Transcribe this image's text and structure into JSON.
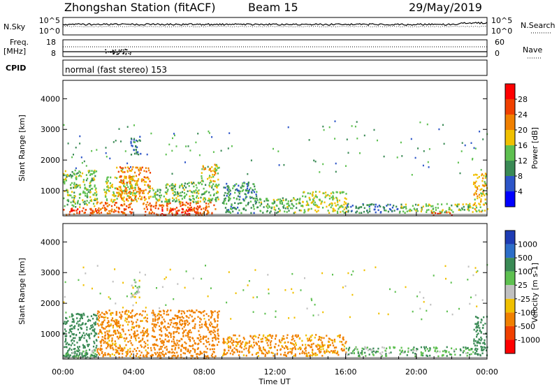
{
  "header": {
    "station": "Zhongshan Station (fitACF)",
    "beam": "Beam 15",
    "date": "29/May/2019"
  },
  "noise_panel": {
    "left_label": "N.Sky",
    "right_label": "N.Search",
    "left_ticks": [
      "10^5",
      "10^0"
    ],
    "right_ticks": [
      "10^5",
      "10^0"
    ]
  },
  "freq_panel": {
    "left_label": "Freq.",
    "left_unit": "[MHz]",
    "right_label": "Nave",
    "left_ticks": [
      "18",
      "8"
    ],
    "right_ticks": [
      "60",
      "0"
    ]
  },
  "cpid": {
    "label": "CPID",
    "text": "normal (fast stereo) 153"
  },
  "time_axis": {
    "label": "Time UT",
    "ticks": [
      "00:00",
      "04:00",
      "08:00",
      "12:00",
      "16:00",
      "20:00",
      "00:00"
    ]
  },
  "power_panel": {
    "ylabel": "Slant Range [km]",
    "yticks": [
      "1000",
      "2000",
      "3000",
      "4000"
    ],
    "colorbar_label": "Power [dB]",
    "colorbar_ticks": [
      "4",
      "8",
      "12",
      "16",
      "20",
      "24",
      "28"
    ],
    "colors": [
      "#0000ff",
      "#2d55c8",
      "#3a8a55",
      "#5ec050",
      "#f0c000",
      "#f08000",
      "#f04000",
      "#ff0000"
    ]
  },
  "velocity_panel": {
    "ylabel": "Slant Range [km]",
    "yticks": [
      "1000",
      "2000",
      "3000",
      "4000"
    ],
    "colorbar_label": "Velocity [m s-1]",
    "colorbar_ticks": [
      "1000",
      "500",
      "100",
      "25",
      "-25",
      "-100",
      "-500",
      "-1000"
    ],
    "colors": [
      "#1e3cb4",
      "#2d6ec8",
      "#3a8a55",
      "#5ec050",
      "#c0c0c0",
      "#f0c000",
      "#f08000",
      "#f04000",
      "#ff0000"
    ]
  },
  "chart_data": [
    {
      "type": "heatmap",
      "name": "power",
      "x_range_hours": [
        0,
        24
      ],
      "y_range_km": [
        180,
        4600
      ],
      "value_label": "Power [dB]",
      "value_range": [
        0,
        30
      ],
      "blobs": [
        {
          "t0": 0.0,
          "t1": 1.9,
          "r0": 230,
          "r1": 480,
          "v": 26
        },
        {
          "t0": 0.0,
          "t1": 1.9,
          "r0": 480,
          "r1": 1700,
          "v": 14
        },
        {
          "t0": 1.9,
          "t1": 4.0,
          "r0": 230,
          "r1": 650,
          "v": 24
        },
        {
          "t0": 2.3,
          "t1": 4.2,
          "r0": 650,
          "r1": 1500,
          "v": 16
        },
        {
          "t0": 3.0,
          "t1": 4.9,
          "r0": 700,
          "r1": 1800,
          "v": 22
        },
        {
          "t0": 3.8,
          "t1": 4.4,
          "r0": 2200,
          "r1": 2800,
          "v": 8
        },
        {
          "t0": 4.5,
          "t1": 8.6,
          "r0": 230,
          "r1": 650,
          "v": 24
        },
        {
          "t0": 5.4,
          "t1": 7.6,
          "r0": 230,
          "r1": 430,
          "v": 29
        },
        {
          "t0": 4.8,
          "t1": 8.8,
          "r0": 650,
          "r1": 1300,
          "v": 14
        },
        {
          "t0": 7.8,
          "t1": 8.8,
          "r0": 1300,
          "r1": 1900,
          "v": 18
        },
        {
          "t0": 9.0,
          "t1": 11.0,
          "r0": 300,
          "r1": 1300,
          "v": 10
        },
        {
          "t0": 11.0,
          "t1": 13.5,
          "r0": 300,
          "r1": 800,
          "v": 13
        },
        {
          "t0": 13.5,
          "t1": 16.0,
          "r0": 300,
          "r1": 1000,
          "v": 16
        },
        {
          "t0": 16.0,
          "t1": 19.0,
          "r0": 300,
          "r1": 600,
          "v": 9
        },
        {
          "t0": 19.0,
          "t1": 23.2,
          "r0": 300,
          "r1": 600,
          "v": 14
        },
        {
          "t0": 20.8,
          "t1": 22.0,
          "r0": 230,
          "r1": 330,
          "v": 27
        },
        {
          "t0": 23.2,
          "t1": 24.0,
          "r0": 300,
          "r1": 1600,
          "v": 18
        }
      ]
    },
    {
      "type": "heatmap",
      "name": "velocity",
      "x_range_hours": [
        0,
        24
      ],
      "y_range_km": [
        180,
        4600
      ],
      "value_label": "Velocity [m s-1]",
      "value_range": [
        -1000,
        1000
      ],
      "blobs": [
        {
          "t0": 0.0,
          "t1": 1.9,
          "r0": 230,
          "r1": 1700,
          "v": 300
        },
        {
          "t0": 0.0,
          "t1": 1.9,
          "r0": 230,
          "r1": 500,
          "v": 80
        },
        {
          "t0": 1.9,
          "t1": 4.8,
          "r0": 230,
          "r1": 1800,
          "v": -150
        },
        {
          "t0": 3.8,
          "t1": 4.4,
          "r0": 2200,
          "r1": 2800,
          "v": 0
        },
        {
          "t0": 4.5,
          "t1": 8.6,
          "r0": 230,
          "r1": 650,
          "v": -200
        },
        {
          "t0": 5.0,
          "t1": 8.8,
          "r0": 650,
          "r1": 1800,
          "v": -250
        },
        {
          "t0": 9.0,
          "t1": 13.5,
          "r0": 300,
          "r1": 1000,
          "v": -150
        },
        {
          "t0": 13.5,
          "t1": 16.0,
          "r0": 300,
          "r1": 1000,
          "v": -130
        },
        {
          "t0": 16.0,
          "t1": 19.0,
          "r0": 300,
          "r1": 600,
          "v": 60
        },
        {
          "t0": 19.0,
          "t1": 23.2,
          "r0": 300,
          "r1": 600,
          "v": 70
        },
        {
          "t0": 23.2,
          "t1": 24.0,
          "r0": 300,
          "r1": 1600,
          "v": 400
        }
      ]
    }
  ]
}
